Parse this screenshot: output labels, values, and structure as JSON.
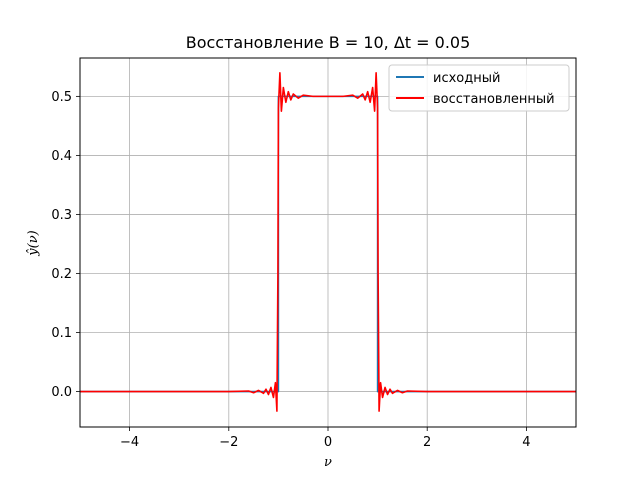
{
  "chart_data": {
    "type": "line",
    "title": "Восстановление B = 10, Δt = 0.05",
    "xlabel": "ν",
    "ylabel": "ŷ(ν)",
    "xlim": [
      -5,
      5
    ],
    "ylim": [
      -0.06,
      0.565
    ],
    "x_ticks": [
      -4,
      -2,
      0,
      2,
      4
    ],
    "x_tick_labels": [
      "−4",
      "−2",
      "0",
      "2",
      "4"
    ],
    "y_ticks": [
      0.0,
      0.1,
      0.2,
      0.3,
      0.4,
      0.5
    ],
    "y_tick_labels": [
      "0.0",
      "0.1",
      "0.2",
      "0.3",
      "0.4",
      "0.5"
    ],
    "grid": true,
    "legend_position": "top-right",
    "colors": {
      "original": "#1f77b4",
      "reconstructed": "#ff0000",
      "grid": "#b0b0b0"
    },
    "series": [
      {
        "name": "исходный",
        "color": "#1f77b4",
        "x": [
          -5,
          -1,
          -1,
          1,
          1,
          5
        ],
        "y": [
          0,
          0,
          0.5,
          0.5,
          0,
          0
        ]
      },
      {
        "name": "восстановленный",
        "color": "#ff0000",
        "x": [
          -5.0,
          -2.0,
          -1.6,
          -1.5,
          -1.4,
          -1.3,
          -1.25,
          -1.2,
          -1.15,
          -1.1,
          -1.06,
          -1.03,
          -1.01,
          -1.0,
          -0.99,
          -0.97,
          -0.94,
          -0.9,
          -0.85,
          -0.8,
          -0.75,
          -0.7,
          -0.6,
          -0.5,
          -0.3,
          0.0,
          0.3,
          0.5,
          0.6,
          0.7,
          0.75,
          0.8,
          0.85,
          0.9,
          0.94,
          0.97,
          0.99,
          1.0,
          1.01,
          1.03,
          1.06,
          1.1,
          1.15,
          1.2,
          1.25,
          1.3,
          1.4,
          1.5,
          1.6,
          2.0,
          5.0
        ],
        "y": [
          0.0,
          0.0,
          0.001,
          -0.002,
          0.002,
          -0.003,
          0.004,
          -0.005,
          0.007,
          -0.01,
          0.015,
          -0.033,
          0.2,
          0.48,
          0.5,
          0.54,
          0.475,
          0.515,
          0.49,
          0.508,
          0.494,
          0.504,
          0.497,
          0.502,
          0.5,
          0.5,
          0.5,
          0.502,
          0.497,
          0.504,
          0.494,
          0.508,
          0.49,
          0.515,
          0.475,
          0.54,
          0.5,
          0.48,
          0.2,
          -0.033,
          0.015,
          -0.01,
          0.007,
          -0.005,
          0.004,
          -0.003,
          0.002,
          -0.002,
          0.001,
          0.0,
          0.0
        ]
      }
    ]
  }
}
